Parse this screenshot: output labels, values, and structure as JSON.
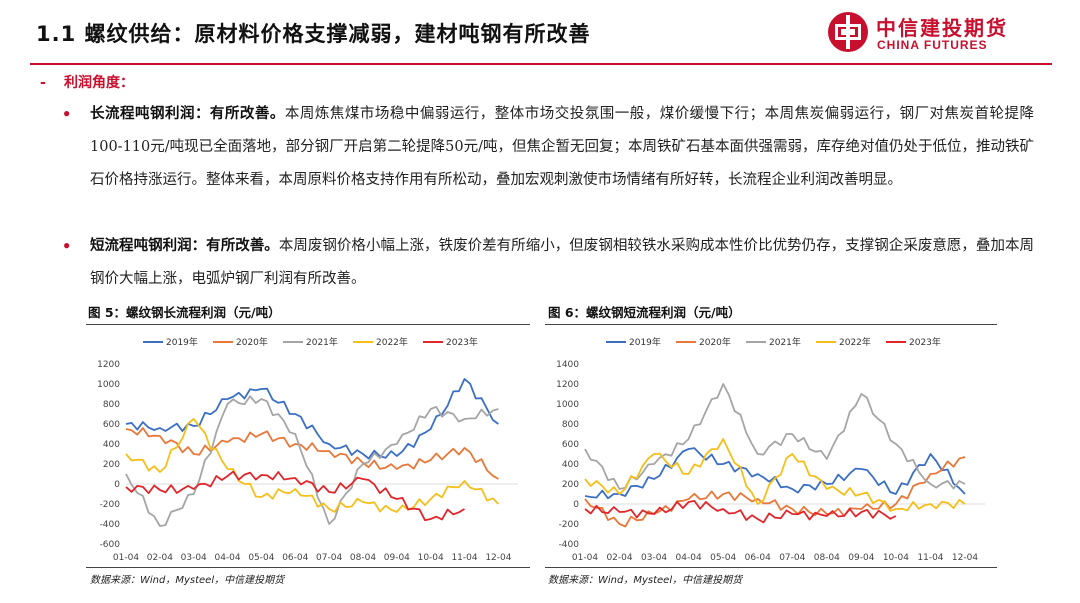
{
  "header": {
    "title": "1.1 螺纹供给：原材料价格支撑减弱，建材吨钢有所改善",
    "brand_cn": "中信建投期货",
    "brand_en": "CHINA FUTURES",
    "accent": "#c8102e"
  },
  "section": {
    "dash": "-",
    "label": "利润角度："
  },
  "paragraphs": [
    {
      "bullet": "•",
      "lead": "长流程吨钢利润：有所改善。",
      "body": "本周炼焦煤市场稳中偏弱运行，整体市场交投氛围一般，煤价缓慢下行；本周焦炭偏弱运行，钢厂对焦炭首轮提降100-110元/吨现已全面落地，部分钢厂开启第二轮提降50元/吨，但焦企暂无回复；本周铁矿石基本面供强需弱，库存绝对值仍处于低位，推动铁矿石价格持涨运行。整体来看，本周原料价格支持作用有所松动，叠加宏观刺激使市场情绪有所好转，长流程企业利润改善明显。"
    },
    {
      "bullet": "•",
      "lead": "短流程吨钢利润：有所改善。",
      "body": "本周废钢价格小幅上涨，铁废价差有所缩小，但废钢相较铁水采购成本性价比优势仍存，支撑钢企采废意愿，叠加本周钢价大幅上涨，电弧炉钢厂利润有所改善。"
    }
  ],
  "figures": [
    {
      "title": "图 5：螺纹钢长流程利润（元/吨）",
      "source": "数据来源：Wind，Mysteel，中信建投期货"
    },
    {
      "title": "图 6：螺纹钢短流程利润（元/吨）",
      "source": "数据来源：Wind，Mysteel，中信建投期货"
    }
  ],
  "chart_data": [
    {
      "type": "line",
      "title": "螺纹钢长流程利润（元/吨）",
      "x": [
        "01-04",
        "02-04",
        "03-04",
        "04-04",
        "05-04",
        "06-04",
        "07-04",
        "08-04",
        "09-04",
        "10-04",
        "11-04",
        "12-04"
      ],
      "ylim": [
        -600,
        1200
      ],
      "yticks": [
        -600,
        -400,
        -200,
        0,
        200,
        400,
        600,
        800,
        1000,
        1200
      ],
      "legend_position": "top",
      "series": [
        {
          "name": "2019年",
          "color": "#3a6fc4",
          "values": [
            600,
            560,
            580,
            850,
            950,
            700,
            400,
            300,
            280,
            550,
            1050,
            600
          ]
        },
        {
          "name": "2020年",
          "color": "#e8783a",
          "values": [
            550,
            480,
            300,
            420,
            500,
            400,
            330,
            210,
            150,
            240,
            360,
            50
          ]
        },
        {
          "name": "2021年",
          "color": "#a5a5a5",
          "values": [
            100,
            -420,
            -100,
            800,
            850,
            500,
            -400,
            200,
            400,
            750,
            650,
            750
          ]
        },
        {
          "name": "2022年",
          "color": "#f5bf1a",
          "values": [
            300,
            120,
            650,
            150,
            -130,
            -50,
            -250,
            -180,
            -280,
            -150,
            30,
            -200
          ]
        },
        {
          "name": "2023年",
          "color": "#e0262b",
          "values": [
            -30,
            -60,
            -50,
            80,
            90,
            60,
            -80,
            50,
            -150,
            -350,
            -250,
            null
          ]
        }
      ]
    },
    {
      "type": "line",
      "title": "螺纹钢短流程利润（元/吨）",
      "x": [
        "01-04",
        "02-04",
        "03-04",
        "04-04",
        "05-04",
        "06-04",
        "07-04",
        "08-04",
        "09-04",
        "10-04",
        "11-04",
        "12-04"
      ],
      "ylim": [
        -400,
        1400
      ],
      "yticks": [
        -400,
        -200,
        0,
        200,
        400,
        600,
        800,
        1000,
        1200,
        1400
      ],
      "legend_position": "top",
      "series": [
        {
          "name": "2019年",
          "color": "#3a6fc4",
          "values": [
            80,
            100,
            250,
            550,
            400,
            300,
            150,
            200,
            350,
            100,
            500,
            100
          ]
        },
        {
          "name": "2020年",
          "color": "#e8783a",
          "values": [
            50,
            -200,
            -100,
            50,
            100,
            50,
            -50,
            -100,
            -50,
            0,
            300,
            470
          ]
        },
        {
          "name": "2021年",
          "color": "#a5a5a5",
          "values": [
            550,
            150,
            400,
            650,
            1200,
            500,
            700,
            450,
            1100,
            600,
            200,
            200
          ]
        },
        {
          "name": "2022年",
          "color": "#f5bf1a",
          "values": [
            250,
            100,
            500,
            300,
            650,
            0,
            500,
            150,
            100,
            -50,
            0,
            0
          ]
        },
        {
          "name": "2023年",
          "color": "#e0262b",
          "values": [
            -50,
            -80,
            -100,
            20,
            -50,
            -150,
            -100,
            -120,
            -80,
            -120,
            null,
            null
          ]
        }
      ]
    }
  ]
}
